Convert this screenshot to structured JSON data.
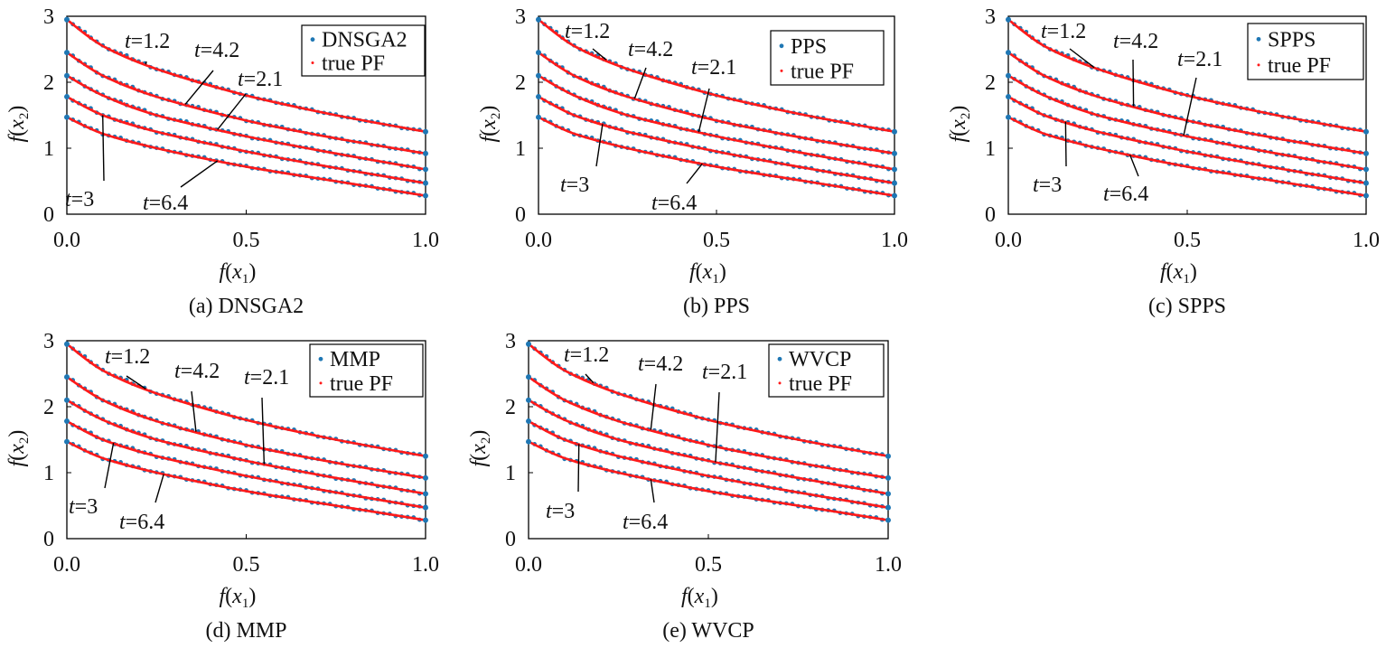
{
  "figure": {
    "panels": [
      {
        "id": "a",
        "caption": "(a) DNSGA2",
        "legend": [
          "DNSGA2",
          "true PF"
        ],
        "xlabel_fn": "f",
        "xlabel_var": "x",
        "xlabel_sub": "1",
        "ylabel_fn": "f",
        "ylabel_var": "x",
        "ylabel_sub": "2",
        "annotations": [
          {
            "label": "t=1.2",
            "t": "t",
            "eq": "=1.2",
            "curve": 0,
            "x": 0.22
          },
          {
            "label": "t=4.2",
            "t": "t",
            "eq": "=4.2",
            "curve": 1,
            "x": 0.33
          },
          {
            "label": "t=2.1",
            "t": "t",
            "eq": "=2.1",
            "curve": 2,
            "x": 0.42
          },
          {
            "label": "t=3",
            "t": "t",
            "eq": "=3",
            "curve": 3,
            "x": 0.1
          },
          {
            "label": "t=6.4",
            "t": "t",
            "eq": "=6.4",
            "curve": 4,
            "x": 0.42
          }
        ]
      },
      {
        "id": "b",
        "caption": "(b) PPS",
        "legend": [
          "PPS",
          "true PF"
        ],
        "xlabel_fn": "f",
        "xlabel_var": "x",
        "xlabel_sub": "1",
        "ylabel_fn": "f",
        "ylabel_var": "x",
        "ylabel_sub": "2",
        "annotations": [
          {
            "label": "t=1.2",
            "t": "t",
            "eq": "=1.2",
            "curve": 0,
            "x": 0.19
          },
          {
            "label": "t=4.2",
            "t": "t",
            "eq": "=4.2",
            "curve": 1,
            "x": 0.27
          },
          {
            "label": "t=2.1",
            "t": "t",
            "eq": "=2.1",
            "curve": 2,
            "x": 0.45
          },
          {
            "label": "t=3",
            "t": "t",
            "eq": "=3",
            "curve": 3,
            "x": 0.18
          },
          {
            "label": "t=6.4",
            "t": "t",
            "eq": "=6.4",
            "curve": 4,
            "x": 0.46
          }
        ]
      },
      {
        "id": "c",
        "caption": "(c) SPPS",
        "legend": [
          "SPPS",
          "true PF"
        ],
        "xlabel_fn": "f",
        "xlabel_var": "x",
        "xlabel_sub": "1",
        "ylabel_fn": "f",
        "ylabel_var": "x",
        "ylabel_sub": "2",
        "annotations": [
          {
            "label": "t=1.2",
            "t": "t",
            "eq": "=1.2",
            "curve": 0,
            "x": 0.24
          },
          {
            "label": "t=4.2",
            "t": "t",
            "eq": "=4.2",
            "curve": 1,
            "x": 0.35
          },
          {
            "label": "t=2.1",
            "t": "t",
            "eq": "=2.1",
            "curve": 2,
            "x": 0.49
          },
          {
            "label": "t=3",
            "t": "t",
            "eq": "=3",
            "curve": 3,
            "x": 0.16
          },
          {
            "label": "t=6.4",
            "t": "t",
            "eq": "=6.4",
            "curve": 4,
            "x": 0.34
          }
        ]
      },
      {
        "id": "d",
        "caption": "(d) MMP",
        "legend": [
          "MMP",
          "true PF"
        ],
        "xlabel_fn": "f",
        "xlabel_var": "x",
        "xlabel_sub": "1",
        "ylabel_fn": "f",
        "ylabel_var": "x",
        "ylabel_sub": "2",
        "annotations": [
          {
            "label": "t=1.2",
            "t": "t",
            "eq": "=1.2",
            "curve": 0,
            "x": 0.22
          },
          {
            "label": "t=4.2",
            "t": "t",
            "eq": "=4.2",
            "curve": 1,
            "x": 0.36
          },
          {
            "label": "t=2.1",
            "t": "t",
            "eq": "=2.1",
            "curve": 2,
            "x": 0.55
          },
          {
            "label": "t=3",
            "t": "t",
            "eq": "=3",
            "curve": 3,
            "x": 0.13
          },
          {
            "label": "t=6.4",
            "t": "t",
            "eq": "=6.4",
            "curve": 4,
            "x": 0.27
          }
        ]
      },
      {
        "id": "e",
        "caption": "(e) WVCP",
        "legend": [
          "WVCP",
          "true PF"
        ],
        "xlabel_fn": "f",
        "xlabel_var": "x",
        "xlabel_sub": "1",
        "ylabel_fn": "f",
        "ylabel_var": "x",
        "ylabel_sub": "2",
        "annotations": [
          {
            "label": "t=1.2",
            "t": "t",
            "eq": "=1.2",
            "curve": 0,
            "x": 0.18
          },
          {
            "label": "t=4.2",
            "t": "t",
            "eq": "=4.2",
            "curve": 1,
            "x": 0.34
          },
          {
            "label": "t=2.1",
            "t": "t",
            "eq": "=2.1",
            "curve": 2,
            "x": 0.52
          },
          {
            "label": "t=3",
            "t": "t",
            "eq": "=3",
            "curve": 3,
            "x": 0.14
          },
          {
            "label": "t=6.4",
            "t": "t",
            "eq": "=6.4",
            "curve": 4,
            "x": 0.34
          }
        ]
      }
    ]
  },
  "chart_data": [
    {
      "type": "scatter",
      "caption": "(a) DNSGA2",
      "xlabel": "f(x1)",
      "ylabel": "f(x2)",
      "xlim": [
        0,
        1
      ],
      "ylim": [
        0,
        3
      ],
      "xticks": [
        "0.0",
        "0.5",
        "1.0"
      ],
      "yticks": [
        "0",
        "1",
        "2",
        "3"
      ],
      "legend_position": "top-right",
      "series": [
        {
          "name": "DNSGA2",
          "color": "#1f77b4",
          "marker": "dot"
        },
        {
          "name": "true PF",
          "color": "#ff1a1a",
          "marker": "dot"
        }
      ],
      "fronts": [
        {
          "label": "t=1.2",
          "x": [
            0,
            0.1,
            0.25,
            0.5,
            0.75,
            1.0
          ],
          "y": [
            2.95,
            2.55,
            2.2,
            1.8,
            1.5,
            1.25
          ]
        },
        {
          "label": "t=4.2",
          "x": [
            0,
            0.1,
            0.25,
            0.5,
            0.75,
            1.0
          ],
          "y": [
            2.45,
            2.1,
            1.78,
            1.42,
            1.15,
            0.92
          ]
        },
        {
          "label": "t=2.1",
          "x": [
            0,
            0.1,
            0.25,
            0.5,
            0.75,
            1.0
          ],
          "y": [
            2.1,
            1.8,
            1.5,
            1.18,
            0.92,
            0.68
          ]
        },
        {
          "label": "t=3",
          "x": [
            0,
            0.1,
            0.25,
            0.5,
            0.75,
            1.0
          ],
          "y": [
            1.78,
            1.5,
            1.25,
            0.95,
            0.7,
            0.47
          ]
        },
        {
          "label": "t=6.4",
          "x": [
            0,
            0.1,
            0.25,
            0.5,
            0.75,
            1.0
          ],
          "y": [
            1.47,
            1.22,
            1.0,
            0.72,
            0.5,
            0.28
          ]
        }
      ]
    },
    {
      "type": "scatter",
      "caption": "(b) PPS",
      "xlabel": "f(x1)",
      "ylabel": "f(x2)",
      "xlim": [
        0,
        1
      ],
      "ylim": [
        0,
        3
      ],
      "xticks": [
        "0.0",
        "0.5",
        "1.0"
      ],
      "yticks": [
        "0",
        "1",
        "2",
        "3"
      ],
      "legend_position": "top-right",
      "series": [
        {
          "name": "PPS",
          "color": "#1f77b4",
          "marker": "dot"
        },
        {
          "name": "true PF",
          "color": "#ff1a1a",
          "marker": "dot"
        }
      ],
      "fronts": [
        {
          "label": "t=1.2",
          "x": [
            0,
            0.1,
            0.25,
            0.5,
            0.75,
            1.0
          ],
          "y": [
            2.95,
            2.55,
            2.2,
            1.8,
            1.5,
            1.25
          ]
        },
        {
          "label": "t=4.2",
          "x": [
            0,
            0.1,
            0.25,
            0.5,
            0.75,
            1.0
          ],
          "y": [
            2.45,
            2.1,
            1.78,
            1.42,
            1.15,
            0.92
          ]
        },
        {
          "label": "t=2.1",
          "x": [
            0,
            0.1,
            0.25,
            0.5,
            0.75,
            1.0
          ],
          "y": [
            2.1,
            1.8,
            1.5,
            1.18,
            0.92,
            0.68
          ]
        },
        {
          "label": "t=3",
          "x": [
            0,
            0.1,
            0.25,
            0.5,
            0.75,
            1.0
          ],
          "y": [
            1.78,
            1.5,
            1.25,
            0.95,
            0.7,
            0.47
          ]
        },
        {
          "label": "t=6.4",
          "x": [
            0,
            0.1,
            0.25,
            0.5,
            0.75,
            1.0
          ],
          "y": [
            1.47,
            1.22,
            1.0,
            0.72,
            0.5,
            0.28
          ]
        }
      ]
    },
    {
      "type": "scatter",
      "caption": "(c) SPPS",
      "xlabel": "f(x1)",
      "ylabel": "f(x2)",
      "xlim": [
        0,
        1
      ],
      "ylim": [
        0,
        3
      ],
      "xticks": [
        "0.0",
        "0.5",
        "1.0"
      ],
      "yticks": [
        "0",
        "1",
        "2",
        "3"
      ],
      "legend_position": "top-right",
      "series": [
        {
          "name": "SPPS",
          "color": "#1f77b4",
          "marker": "dot"
        },
        {
          "name": "true PF",
          "color": "#ff1a1a",
          "marker": "dot"
        }
      ],
      "fronts": [
        {
          "label": "t=1.2",
          "x": [
            0,
            0.1,
            0.25,
            0.5,
            0.75,
            1.0
          ],
          "y": [
            2.95,
            2.55,
            2.2,
            1.8,
            1.5,
            1.25
          ]
        },
        {
          "label": "t=4.2",
          "x": [
            0,
            0.1,
            0.25,
            0.5,
            0.75,
            1.0
          ],
          "y": [
            2.45,
            2.1,
            1.78,
            1.42,
            1.15,
            0.92
          ]
        },
        {
          "label": "t=2.1",
          "x": [
            0,
            0.1,
            0.25,
            0.5,
            0.75,
            1.0
          ],
          "y": [
            2.1,
            1.8,
            1.5,
            1.18,
            0.92,
            0.68
          ]
        },
        {
          "label": "t=3",
          "x": [
            0,
            0.1,
            0.25,
            0.5,
            0.75,
            1.0
          ],
          "y": [
            1.78,
            1.5,
            1.25,
            0.95,
            0.7,
            0.47
          ]
        },
        {
          "label": "t=6.4",
          "x": [
            0,
            0.1,
            0.25,
            0.5,
            0.75,
            1.0
          ],
          "y": [
            1.47,
            1.22,
            1.0,
            0.72,
            0.5,
            0.28
          ]
        }
      ]
    },
    {
      "type": "scatter",
      "caption": "(d) MMP",
      "xlabel": "f(x1)",
      "ylabel": "f(x2)",
      "xlim": [
        0,
        1
      ],
      "ylim": [
        0,
        3
      ],
      "xticks": [
        "0.0",
        "0.5",
        "1.0"
      ],
      "yticks": [
        "0",
        "1",
        "2",
        "3"
      ],
      "legend_position": "top-right",
      "series": [
        {
          "name": "MMP",
          "color": "#1f77b4",
          "marker": "dot"
        },
        {
          "name": "true PF",
          "color": "#ff1a1a",
          "marker": "dot"
        }
      ],
      "fronts": [
        {
          "label": "t=1.2",
          "x": [
            0,
            0.1,
            0.25,
            0.5,
            0.75,
            1.0
          ],
          "y": [
            2.95,
            2.55,
            2.2,
            1.8,
            1.5,
            1.25
          ]
        },
        {
          "label": "t=4.2",
          "x": [
            0,
            0.1,
            0.25,
            0.5,
            0.75,
            1.0
          ],
          "y": [
            2.45,
            2.1,
            1.78,
            1.42,
            1.15,
            0.92
          ]
        },
        {
          "label": "t=2.1",
          "x": [
            0,
            0.1,
            0.25,
            0.5,
            0.75,
            1.0
          ],
          "y": [
            2.1,
            1.8,
            1.5,
            1.18,
            0.92,
            0.68
          ]
        },
        {
          "label": "t=3",
          "x": [
            0,
            0.1,
            0.25,
            0.5,
            0.75,
            1.0
          ],
          "y": [
            1.78,
            1.5,
            1.25,
            0.95,
            0.7,
            0.47
          ]
        },
        {
          "label": "t=6.4",
          "x": [
            0,
            0.1,
            0.25,
            0.5,
            0.75,
            1.0
          ],
          "y": [
            1.47,
            1.22,
            1.0,
            0.72,
            0.5,
            0.28
          ]
        }
      ]
    },
    {
      "type": "scatter",
      "caption": "(e) WVCP",
      "xlabel": "f(x1)",
      "ylabel": "f(x2)",
      "xlim": [
        0,
        1
      ],
      "ylim": [
        0,
        3
      ],
      "xticks": [
        "0.0",
        "0.5",
        "1.0"
      ],
      "yticks": [
        "0",
        "1",
        "2",
        "3"
      ],
      "legend_position": "top-right",
      "series": [
        {
          "name": "WVCP",
          "color": "#1f77b4",
          "marker": "dot"
        },
        {
          "name": "true PF",
          "color": "#ff1a1a",
          "marker": "dot"
        }
      ],
      "fronts": [
        {
          "label": "t=1.2",
          "x": [
            0,
            0.1,
            0.25,
            0.5,
            0.75,
            1.0
          ],
          "y": [
            2.95,
            2.55,
            2.2,
            1.8,
            1.5,
            1.25
          ]
        },
        {
          "label": "t=4.2",
          "x": [
            0,
            0.1,
            0.25,
            0.5,
            0.75,
            1.0
          ],
          "y": [
            2.45,
            2.1,
            1.78,
            1.42,
            1.15,
            0.92
          ]
        },
        {
          "label": "t=2.1",
          "x": [
            0,
            0.1,
            0.25,
            0.5,
            0.75,
            1.0
          ],
          "y": [
            2.1,
            1.8,
            1.5,
            1.18,
            0.92,
            0.68
          ]
        },
        {
          "label": "t=3",
          "x": [
            0,
            0.1,
            0.25,
            0.5,
            0.75,
            1.0
          ],
          "y": [
            1.78,
            1.5,
            1.25,
            0.95,
            0.7,
            0.47
          ]
        },
        {
          "label": "t=6.4",
          "x": [
            0,
            0.1,
            0.25,
            0.5,
            0.75,
            1.0
          ],
          "y": [
            1.47,
            1.22,
            1.0,
            0.72,
            0.5,
            0.28
          ]
        }
      ]
    }
  ]
}
